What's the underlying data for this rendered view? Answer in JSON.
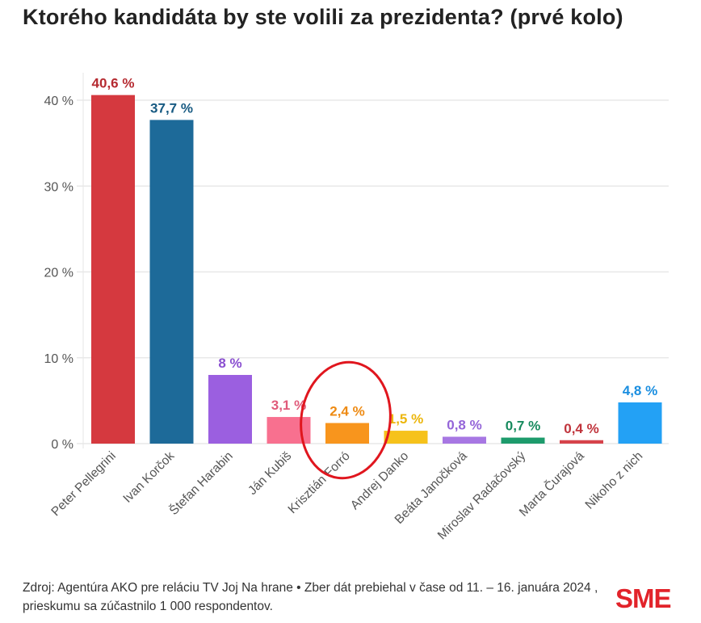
{
  "chart_data": {
    "type": "bar",
    "title": "Ktorého kandidáta by ste volili za prezidenta? (prvé kolo)",
    "xlabel": "",
    "ylabel": "",
    "ylim": [
      0,
      42
    ],
    "yticks": [
      0,
      10,
      20,
      30,
      40
    ],
    "ytick_labels": [
      "0 %",
      "10 %",
      "20 %",
      "30 %",
      "40 %"
    ],
    "grid": true,
    "categories": [
      "Peter Pellegrini",
      "Ivan Korčok",
      "Štefan Harabin",
      "Ján Kubiš",
      "Krisztián Forró",
      "Andrej Danko",
      "Beáta Janočková",
      "Miroslav Radačovský",
      "Marta Čurajová",
      "Nikoho z nich"
    ],
    "values": [
      40.6,
      37.7,
      8,
      3.1,
      2.4,
      1.5,
      0.8,
      0.7,
      0.4,
      4.8
    ],
    "data_labels": [
      "40,6 %",
      "37,7 %",
      "8 %",
      "3,1 %",
      "2,4 %",
      "1,5 %",
      "0,8 %",
      "0,7 %",
      "0,4 %",
      "4,8 %"
    ],
    "colors": [
      "#d5393f",
      "#1d6a99",
      "#9b5fe0",
      "#f8708f",
      "#f8951d",
      "#f6c21b",
      "#a777e3",
      "#1d9b6c",
      "#d6434b",
      "#23a1f5"
    ],
    "label_colors": [
      "#b52a30",
      "#175a82",
      "#8a4fd0",
      "#e05a7a",
      "#ee8a12",
      "#ecb60c",
      "#9465d8",
      "#178a5e",
      "#c0343c",
      "#1a8ee0"
    ],
    "annotation": {
      "type": "ellipse",
      "target": "Krisztián Forró",
      "color": "#e0161e"
    }
  },
  "footer": {
    "source": "Zdroj: Agentúra AKO pre reláciu TV Joj Na hrane • Zber dát prebiehal v čase od 11. – 16. januára 2024 , prieskumu sa zúčastnilo 1 000 respondentov.",
    "logo": "SME"
  }
}
